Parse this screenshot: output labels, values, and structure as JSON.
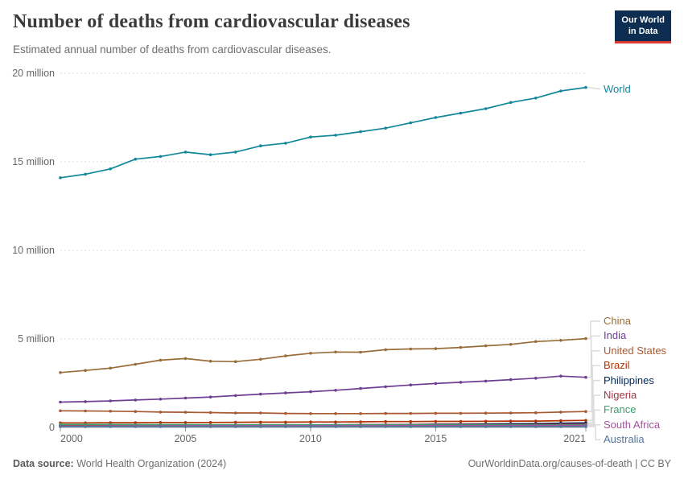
{
  "header": {
    "title": "Number of deaths from cardiovascular diseases",
    "subtitle": "Estimated annual number of deaths from cardiovascular diseases.",
    "logo": {
      "line1": "Our World",
      "line2": "in Data",
      "bg_color": "#0d2e51",
      "accent_color": "#dc3a31"
    }
  },
  "chart_data": {
    "type": "line",
    "title": "Number of deaths from cardiovascular diseases",
    "xlabel": "",
    "ylabel": "",
    "xlim": [
      2000,
      2021
    ],
    "ylim": [
      0,
      20
    ],
    "grid": "horizontal-dashed",
    "legend_position": "right",
    "x": [
      2000,
      2001,
      2002,
      2003,
      2004,
      2005,
      2006,
      2007,
      2008,
      2009,
      2010,
      2011,
      2012,
      2013,
      2014,
      2015,
      2016,
      2017,
      2018,
      2019,
      2020,
      2021
    ],
    "x_ticks": [
      "2000",
      "2005",
      "2010",
      "2015",
      "2021"
    ],
    "x_tick_years": [
      2000,
      2005,
      2010,
      2015,
      2021
    ],
    "y_ticks": [
      {
        "value": 0,
        "label": "0"
      },
      {
        "value": 5,
        "label": "5 million"
      },
      {
        "value": 10,
        "label": "10 million"
      },
      {
        "value": 15,
        "label": "15 million"
      },
      {
        "value": 20,
        "label": "20 million"
      }
    ],
    "unit": "million deaths per year",
    "series": [
      {
        "name": "World",
        "color": "#12889A",
        "values": [
          14.1,
          14.3,
          14.6,
          15.15,
          15.3,
          15.55,
          15.4,
          15.55,
          15.9,
          16.05,
          16.4,
          16.5,
          16.7,
          16.9,
          17.2,
          17.5,
          17.75,
          18.0,
          18.35,
          18.6,
          19.0,
          19.2
        ]
      },
      {
        "name": "China",
        "color": "#996D39",
        "values": [
          3.1,
          3.22,
          3.35,
          3.57,
          3.8,
          3.89,
          3.74,
          3.72,
          3.85,
          4.04,
          4.19,
          4.26,
          4.25,
          4.39,
          4.43,
          4.45,
          4.52,
          4.61,
          4.69,
          4.85,
          4.92,
          5.02
        ]
      },
      {
        "name": "India",
        "color": "#6D3E91",
        "values": [
          1.43,
          1.46,
          1.5,
          1.55,
          1.6,
          1.66,
          1.72,
          1.8,
          1.88,
          1.95,
          2.02,
          2.1,
          2.2,
          2.3,
          2.4,
          2.48,
          2.55,
          2.62,
          2.7,
          2.78,
          2.9,
          2.83
        ]
      },
      {
        "name": "United States",
        "color": "#A85A32",
        "values": [
          0.94,
          0.93,
          0.92,
          0.9,
          0.87,
          0.86,
          0.84,
          0.82,
          0.82,
          0.79,
          0.78,
          0.78,
          0.78,
          0.79,
          0.79,
          0.8,
          0.8,
          0.81,
          0.82,
          0.83,
          0.87,
          0.9
        ]
      },
      {
        "name": "Brazil",
        "color": "#B13507",
        "values": [
          0.26,
          0.26,
          0.27,
          0.27,
          0.28,
          0.28,
          0.28,
          0.29,
          0.3,
          0.3,
          0.31,
          0.31,
          0.32,
          0.33,
          0.33,
          0.34,
          0.34,
          0.35,
          0.36,
          0.36,
          0.38,
          0.4
        ]
      },
      {
        "name": "Philippines",
        "color": "#00295B",
        "values": [
          0.08,
          0.09,
          0.09,
          0.1,
          0.1,
          0.11,
          0.11,
          0.12,
          0.12,
          0.13,
          0.14,
          0.15,
          0.15,
          0.16,
          0.17,
          0.18,
          0.19,
          0.2,
          0.21,
          0.22,
          0.24,
          0.26
        ]
      },
      {
        "name": "Nigeria",
        "color": "#A03646",
        "values": [
          0.12,
          0.12,
          0.13,
          0.13,
          0.13,
          0.14,
          0.14,
          0.14,
          0.15,
          0.15,
          0.15,
          0.15,
          0.16,
          0.16,
          0.16,
          0.16,
          0.17,
          0.17,
          0.17,
          0.17,
          0.18,
          0.18
        ]
      },
      {
        "name": "France",
        "color": "#3C9F6B",
        "values": [
          0.17,
          0.17,
          0.17,
          0.16,
          0.16,
          0.16,
          0.15,
          0.15,
          0.15,
          0.15,
          0.15,
          0.14,
          0.14,
          0.14,
          0.14,
          0.14,
          0.14,
          0.14,
          0.14,
          0.13,
          0.14,
          0.14
        ]
      },
      {
        "name": "South Africa",
        "color": "#A2559C",
        "values": [
          0.07,
          0.07,
          0.08,
          0.08,
          0.08,
          0.09,
          0.09,
          0.09,
          0.09,
          0.09,
          0.09,
          0.09,
          0.09,
          0.09,
          0.1,
          0.1,
          0.1,
          0.1,
          0.1,
          0.1,
          0.11,
          0.11
        ]
      },
      {
        "name": "Australia",
        "color": "#56749D",
        "values": [
          0.05,
          0.05,
          0.05,
          0.05,
          0.05,
          0.05,
          0.05,
          0.05,
          0.05,
          0.05,
          0.05,
          0.05,
          0.05,
          0.05,
          0.05,
          0.05,
          0.05,
          0.05,
          0.05,
          0.05,
          0.05,
          0.05
        ]
      }
    ]
  },
  "footer": {
    "source_label": "Data source:",
    "source_value": "World Health Organization (2024)",
    "credit": "OurWorldinData.org/causes-of-death | CC BY"
  }
}
